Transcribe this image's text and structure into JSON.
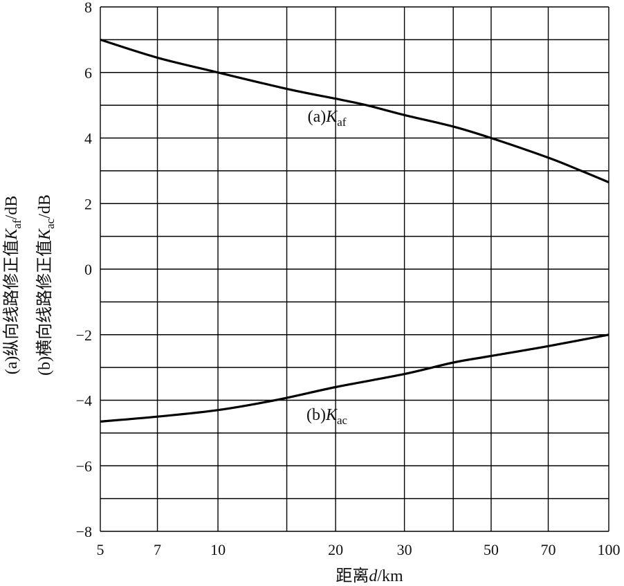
{
  "chart_data": {
    "type": "line",
    "title": "",
    "xlabel": {
      "pre": "距离",
      "var": "d",
      "post": "/km"
    },
    "ylabel": {
      "line1": {
        "pre": "(a)纵向线路修正值",
        "var": "K",
        "sub": "af",
        "post": "/dB"
      },
      "line2": {
        "pre": "(b)横向线路修正值",
        "var": "K",
        "sub": "ac",
        "post": "/dB"
      }
    },
    "xscale": "log",
    "xlim": [
      5,
      100
    ],
    "ylim": [
      -8,
      8
    ],
    "grid": true,
    "x_grid": [
      5,
      7,
      10,
      15,
      20,
      30,
      40,
      50,
      70,
      100
    ],
    "y_grid": [
      -8,
      -7,
      -6,
      -5,
      -4,
      -3,
      -2,
      -1,
      0,
      1,
      2,
      3,
      4,
      5,
      6,
      7,
      8
    ],
    "x_ticks": [
      {
        "v": 5,
        "label": "5"
      },
      {
        "v": 7,
        "label": "7"
      },
      {
        "v": 10,
        "label": "10"
      },
      {
        "v": 20,
        "label": "20"
      },
      {
        "v": 30,
        "label": "30"
      },
      {
        "v": 50,
        "label": "50"
      },
      {
        "v": 70,
        "label": "70"
      },
      {
        "v": 100,
        "label": "100"
      }
    ],
    "y_ticks": [
      {
        "v": 8,
        "label": "8"
      },
      {
        "v": 6,
        "label": "6"
      },
      {
        "v": 4,
        "label": "4"
      },
      {
        "v": 2,
        "label": "2"
      },
      {
        "v": 0,
        "label": "0"
      },
      {
        "v": -2,
        "label": "−2"
      },
      {
        "v": -4,
        "label": "−4"
      },
      {
        "v": -6,
        "label": "−6"
      },
      {
        "v": -8,
        "label": "−8"
      }
    ],
    "series": [
      {
        "id": "a",
        "label": {
          "pre": "(a)",
          "var": "K",
          "sub": "af",
          "at": [
            19,
            4.5
          ]
        },
        "x": [
          5,
          7,
          10,
          15,
          20,
          24,
          30,
          40,
          50,
          70,
          85,
          100
        ],
        "y": [
          7.0,
          6.45,
          6.0,
          5.5,
          5.2,
          5.0,
          4.7,
          4.35,
          4.0,
          3.4,
          3.0,
          2.65
        ]
      },
      {
        "id": "b",
        "label": {
          "pre": "(b)",
          "var": "K",
          "sub": "ac",
          "at": [
            19,
            -4.6
          ]
        },
        "x": [
          5,
          7,
          10,
          14,
          20,
          30,
          40,
          50,
          70,
          100
        ],
        "y": [
          -4.65,
          -4.5,
          -4.3,
          -4.0,
          -3.6,
          -3.2,
          -2.85,
          -2.65,
          -2.35,
          -2.0
        ]
      }
    ]
  }
}
